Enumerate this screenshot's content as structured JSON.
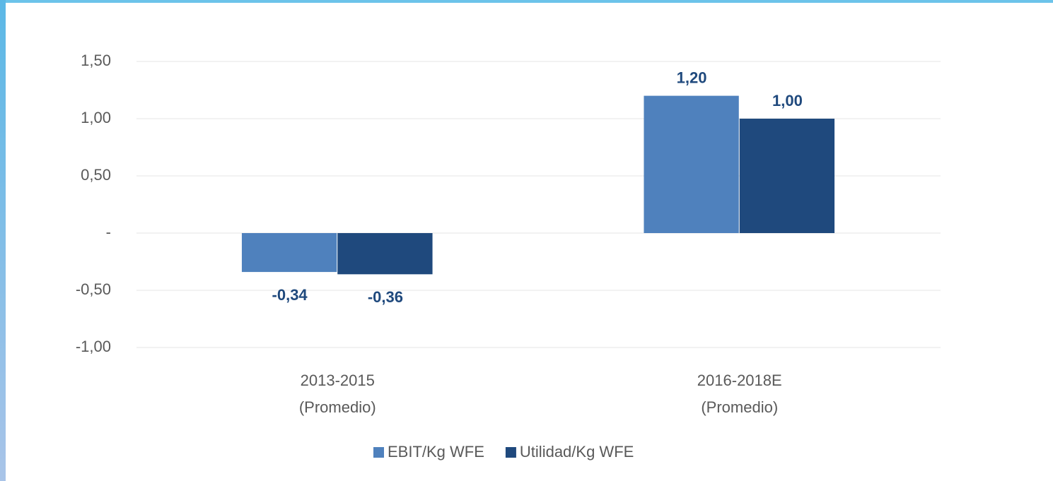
{
  "chart_data": {
    "type": "bar",
    "categories": [
      "2013-2015\n(Promedio)",
      "2016-2018E\n(Promedio)"
    ],
    "series": [
      {
        "name": "EBIT/Kg WFE",
        "color": "#4f81bd",
        "values": [
          -0.34,
          1.2
        ],
        "value_labels": [
          "-0,34",
          "1,20"
        ]
      },
      {
        "name": "Utilidad/Kg WFE",
        "color": "#1f497d",
        "values": [
          -0.36,
          1.0
        ],
        "value_labels": [
          "-0,36",
          "1,00"
        ]
      }
    ],
    "ylim": [
      -1,
      1.5
    ],
    "yticks": [
      {
        "value": -1,
        "label": "-1,00"
      },
      {
        "value": -0.5,
        "label": "-0,50"
      },
      {
        "value": 0,
        "label": "-"
      },
      {
        "value": 0.5,
        "label": "0,50"
      },
      {
        "value": 1,
        "label": "1,00"
      },
      {
        "value": 1.5,
        "label": "1,50"
      }
    ],
    "grid": true,
    "legend": "bottom"
  }
}
